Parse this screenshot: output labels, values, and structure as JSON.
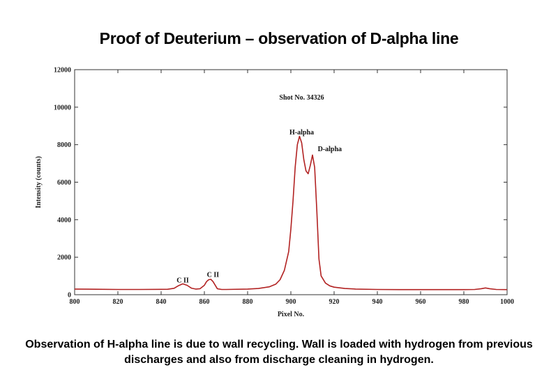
{
  "slide": {
    "title": "Proof of Deuterium – observation of D-alpha line",
    "caption_line1": "Observation of H-alpha line is due to wall recycling. Wall is loaded with hydrogen from previous",
    "caption_line2": "discharges and also from discharge cleaning in hydrogen."
  },
  "chart_data": {
    "type": "line",
    "title": "",
    "xlabel": "Pixel No.",
    "ylabel": "Intensity (counts)",
    "xlim": [
      800,
      1000
    ],
    "ylim": [
      0,
      12000
    ],
    "x_ticks": [
      800,
      820,
      840,
      860,
      880,
      900,
      920,
      940,
      960,
      980,
      1000
    ],
    "y_ticks": [
      0,
      2000,
      4000,
      6000,
      8000,
      10000,
      12000
    ],
    "grid": false,
    "line_color": "#b22222",
    "series": [
      {
        "x": [
          800,
          810,
          820,
          830,
          840,
          843,
          846,
          848,
          850,
          852,
          854,
          856,
          858,
          860,
          861,
          862,
          863,
          864,
          866,
          868,
          870,
          880,
          885,
          890,
          893,
          895,
          897,
          899,
          900,
          901,
          902,
          903,
          904,
          905,
          906,
          907,
          908,
          909,
          910,
          911,
          912,
          913,
          914,
          916,
          918,
          920,
          925,
          930,
          940,
          950,
          960,
          970,
          980,
          985,
          988,
          990,
          992,
          995,
          1000
        ],
        "y": [
          300,
          290,
          280,
          280,
          285,
          290,
          340,
          480,
          580,
          500,
          350,
          300,
          320,
          500,
          700,
          800,
          820,
          700,
          320,
          280,
          280,
          300,
          330,
          420,
          560,
          800,
          1300,
          2300,
          3500,
          5000,
          6800,
          8000,
          8450,
          8100,
          7200,
          6600,
          6450,
          6900,
          7450,
          6800,
          4500,
          1900,
          1000,
          620,
          470,
          400,
          330,
          300,
          280,
          270,
          270,
          270,
          270,
          280,
          320,
          360,
          320,
          280,
          270
        ]
      }
    ],
    "annotations": [
      {
        "text": "Shot No. 34326",
        "x": 905,
        "y": 10400
      },
      {
        "text": "H-alpha",
        "x": 905,
        "y": 8550
      },
      {
        "text": "D-alpha",
        "x": 918,
        "y": 7650
      },
      {
        "text": "C II",
        "x": 850,
        "y": 650
      },
      {
        "text": "C II",
        "x": 864,
        "y": 950
      }
    ]
  }
}
